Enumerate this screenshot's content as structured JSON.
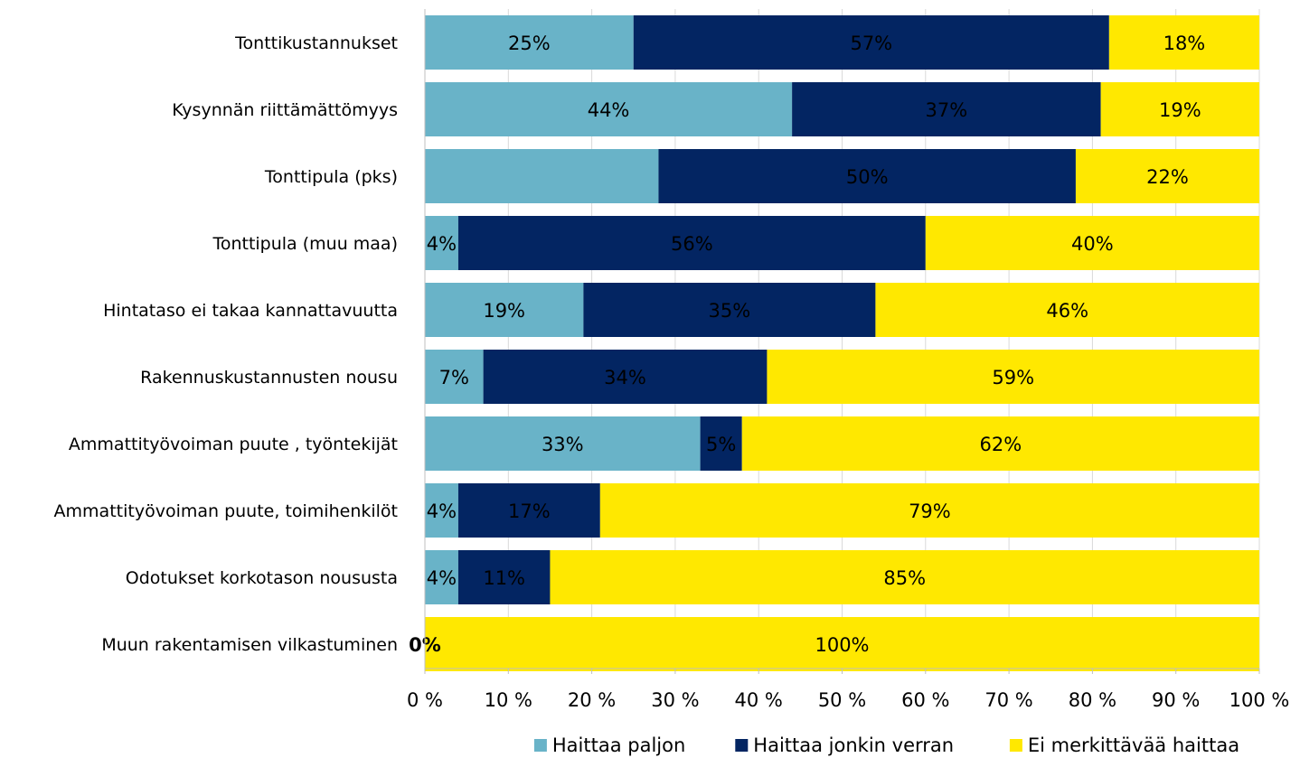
{
  "chart_data": {
    "type": "bar",
    "orientation": "horizontal",
    "stacked": "percent",
    "categories": [
      "Tonttikustannukset",
      "Kysynnän riittämättömyys",
      "Tonttipula (pks)",
      "Tonttipula (muu maa)",
      "Hintataso ei takaa kannattavuutta",
      "Rakennuskustannusten nousu",
      "Ammattityövoiman puute ,  työntekijät",
      "Ammattityövoiman puute, toimihenkilöt",
      "Odotukset korkotason noususta",
      "Muun rakentamisen vilkastuminen"
    ],
    "series": [
      {
        "name": "Haittaa paljon",
        "color": "#69b3c8",
        "label_color": "#000000",
        "values": [
          25,
          44,
          28,
          4,
          19,
          7,
          33,
          4,
          4,
          0
        ],
        "labels": [
          "25%",
          "44%",
          "",
          "4%",
          "19%",
          "7%",
          "33%",
          "4%",
          "4%",
          "0%"
        ]
      },
      {
        "name": "Haittaa jonkin verran",
        "color": "#032562",
        "label_color": "#000000",
        "values": [
          57,
          37,
          50,
          56,
          35,
          34,
          5,
          17,
          11,
          0
        ],
        "labels": [
          "57%",
          "37%",
          "50%",
          "56%",
          "35%",
          "34%",
          "5%",
          "17%",
          "11%",
          ""
        ]
      },
      {
        "name": "Ei merkittävää haittaa",
        "color": "#ffe800",
        "label_color": "#000000",
        "values": [
          18,
          19,
          22,
          40,
          46,
          59,
          62,
          79,
          85,
          100
        ],
        "labels": [
          "18%",
          "19%",
          "22%",
          "40%",
          "46%",
          "59%",
          "62%",
          "79%",
          "85%",
          "100%"
        ]
      }
    ],
    "x_ticks": [
      "0 %",
      "10 %",
      "20 %",
      "30 %",
      "40 %",
      "50 %",
      "60 %",
      "70 %",
      "80 %",
      "90 %",
      "100 %"
    ],
    "xlim": [
      0,
      100
    ],
    "grid": true,
    "legend_position": "bottom",
    "title": "",
    "xlabel": "",
    "ylabel": ""
  }
}
